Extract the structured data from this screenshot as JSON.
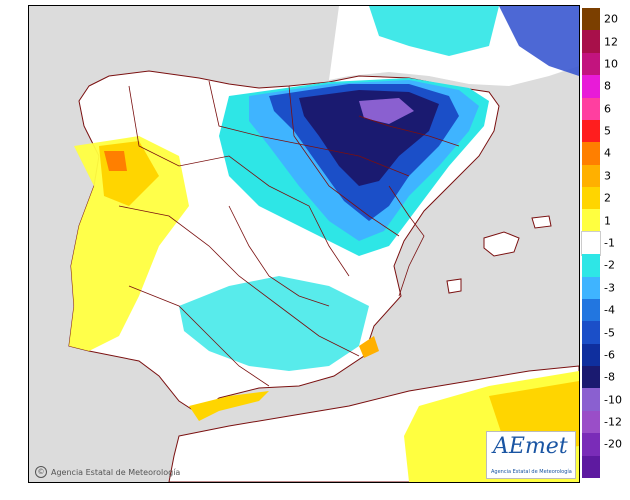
{
  "attribution": "Agencia Estatal de Meteorología",
  "attribution_icon": "copyright-icon",
  "logo": {
    "name": "AEmet",
    "subtitle": "Agencia Estatal de Meteorología"
  },
  "legend": {
    "colors": [
      "#7b3f00",
      "#a8104a",
      "#c2147e",
      "#e81bd8",
      "#ff3fa0",
      "#ff1e1e",
      "#ff7f00",
      "#ffb000",
      "#ffd500",
      "#ffff40",
      "#ffffff",
      "#2ee6e6",
      "#3fb4ff",
      "#2276e0",
      "#1b4fc8",
      "#0f2f9e",
      "#1a1a70",
      "#8a60d0",
      "#9a4ec8",
      "#7a2cb8",
      "#5e1aa0"
    ],
    "ticks": [
      "20",
      "12",
      "10",
      "8",
      "6",
      "5",
      "4",
      "3",
      "2",
      "1",
      "-1",
      "-2",
      "-3",
      "-4",
      "-5",
      "-6",
      "-8",
      "-10",
      "-12",
      "-20"
    ]
  },
  "map_colors": {
    "sea": "#dcdcdc",
    "land": "#ffffff",
    "borders": "#7a1010"
  }
}
